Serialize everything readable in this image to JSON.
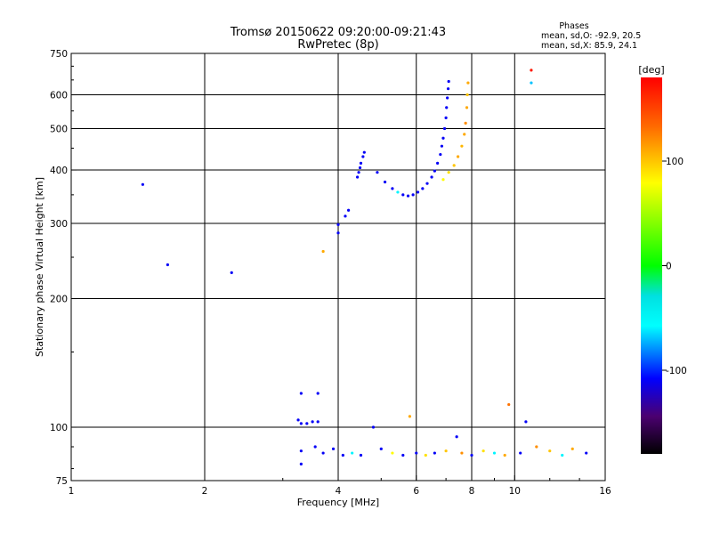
{
  "header": {
    "title_line1": "Tromsø 20150622 09:20:00-09:21:43",
    "title_line2": "RwPretec (8p)",
    "stats_title": "Phases",
    "stats_o": "mean, sd,O:  -92.9, 20.5",
    "stats_x": "mean, sd,X:   85.9, 24.1"
  },
  "colorbar": {
    "unit_label": "[deg]",
    "ticks": [
      "100",
      "0",
      "-100"
    ],
    "tick_values": [
      100,
      0,
      -100
    ],
    "range": [
      -180,
      180
    ]
  },
  "chart_data": {
    "type": "scatter",
    "xlabel": "Frequency [MHz]",
    "ylabel": "Stationary phase Virtual Height [km]",
    "xscale": "log",
    "yscale": "log",
    "xlim": [
      1,
      16
    ],
    "ylim": [
      75,
      750
    ],
    "xticks": [
      1,
      2,
      4,
      6,
      8,
      10,
      16
    ],
    "xtick_labels": [
      "1",
      "2",
      "4",
      "6",
      "8",
      "10",
      "16"
    ],
    "yticks": [
      75,
      100,
      200,
      300,
      400,
      500,
      600,
      750
    ],
    "ytick_labels": [
      "75",
      "100",
      "200",
      "300",
      "400",
      "500",
      "600",
      "750"
    ],
    "grid": true,
    "points": [
      {
        "x": 1.45,
        "y": 370,
        "phase": -110
      },
      {
        "x": 1.65,
        "y": 240,
        "phase": -110
      },
      {
        "x": 2.3,
        "y": 230,
        "phase": -110
      },
      {
        "x": 3.3,
        "y": 120,
        "phase": -110
      },
      {
        "x": 3.6,
        "y": 120,
        "phase": -110
      },
      {
        "x": 3.7,
        "y": 258,
        "phase": 110
      },
      {
        "x": 4.0,
        "y": 285,
        "phase": -110
      },
      {
        "x": 4.0,
        "y": 298,
        "phase": -110
      },
      {
        "x": 4.15,
        "y": 312,
        "phase": -110
      },
      {
        "x": 4.22,
        "y": 322,
        "phase": -110
      },
      {
        "x": 4.42,
        "y": 385,
        "phase": -110
      },
      {
        "x": 4.45,
        "y": 395,
        "phase": -110
      },
      {
        "x": 4.48,
        "y": 405,
        "phase": -110
      },
      {
        "x": 4.5,
        "y": 415,
        "phase": -110
      },
      {
        "x": 4.55,
        "y": 430,
        "phase": -110
      },
      {
        "x": 4.58,
        "y": 440,
        "phase": -110
      },
      {
        "x": 4.9,
        "y": 395,
        "phase": -110
      },
      {
        "x": 5.1,
        "y": 375,
        "phase": -110
      },
      {
        "x": 5.3,
        "y": 362,
        "phase": -110
      },
      {
        "x": 5.45,
        "y": 355,
        "phase": -60
      },
      {
        "x": 5.6,
        "y": 350,
        "phase": -110
      },
      {
        "x": 5.75,
        "y": 348,
        "phase": -110
      },
      {
        "x": 5.9,
        "y": 350,
        "phase": -110
      },
      {
        "x": 6.05,
        "y": 355,
        "phase": -110
      },
      {
        "x": 6.2,
        "y": 362,
        "phase": -110
      },
      {
        "x": 6.35,
        "y": 372,
        "phase": -110
      },
      {
        "x": 6.5,
        "y": 385,
        "phase": -110
      },
      {
        "x": 6.6,
        "y": 398,
        "phase": -110
      },
      {
        "x": 6.7,
        "y": 415,
        "phase": -110
      },
      {
        "x": 6.8,
        "y": 435,
        "phase": -110
      },
      {
        "x": 6.85,
        "y": 455,
        "phase": -110
      },
      {
        "x": 6.9,
        "y": 475,
        "phase": -110
      },
      {
        "x": 6.95,
        "y": 500,
        "phase": -110
      },
      {
        "x": 7.0,
        "y": 530,
        "phase": -110
      },
      {
        "x": 7.02,
        "y": 560,
        "phase": -110
      },
      {
        "x": 7.05,
        "y": 590,
        "phase": -110
      },
      {
        "x": 7.08,
        "y": 620,
        "phase": -110
      },
      {
        "x": 7.1,
        "y": 645,
        "phase": -110
      },
      {
        "x": 6.9,
        "y": 380,
        "phase": 80
      },
      {
        "x": 7.1,
        "y": 395,
        "phase": 90
      },
      {
        "x": 7.3,
        "y": 410,
        "phase": 100
      },
      {
        "x": 7.45,
        "y": 430,
        "phase": 110
      },
      {
        "x": 7.6,
        "y": 455,
        "phase": 105
      },
      {
        "x": 7.7,
        "y": 485,
        "phase": 110
      },
      {
        "x": 7.75,
        "y": 515,
        "phase": 120
      },
      {
        "x": 7.8,
        "y": 560,
        "phase": 110
      },
      {
        "x": 7.82,
        "y": 600,
        "phase": 100
      },
      {
        "x": 7.85,
        "y": 640,
        "phase": 110
      },
      {
        "x": 10.9,
        "y": 685,
        "phase": 170
      },
      {
        "x": 10.9,
        "y": 640,
        "phase": -70
      },
      {
        "x": 3.25,
        "y": 104,
        "phase": -110
      },
      {
        "x": 3.3,
        "y": 102,
        "phase": -110
      },
      {
        "x": 3.4,
        "y": 102,
        "phase": -110
      },
      {
        "x": 3.5,
        "y": 103,
        "phase": -110
      },
      {
        "x": 3.6,
        "y": 103,
        "phase": -110
      },
      {
        "x": 3.3,
        "y": 88,
        "phase": -110
      },
      {
        "x": 3.3,
        "y": 82,
        "phase": -110
      },
      {
        "x": 3.55,
        "y": 90,
        "phase": -110
      },
      {
        "x": 3.7,
        "y": 87,
        "phase": -110
      },
      {
        "x": 3.9,
        "y": 89,
        "phase": -110
      },
      {
        "x": 4.1,
        "y": 86,
        "phase": -110
      },
      {
        "x": 4.3,
        "y": 87,
        "phase": -60
      },
      {
        "x": 4.5,
        "y": 86,
        "phase": -110
      },
      {
        "x": 4.8,
        "y": 100,
        "phase": -110
      },
      {
        "x": 5.0,
        "y": 89,
        "phase": -110
      },
      {
        "x": 5.3,
        "y": 87,
        "phase": 80
      },
      {
        "x": 5.6,
        "y": 86,
        "phase": -110
      },
      {
        "x": 5.8,
        "y": 106,
        "phase": 110
      },
      {
        "x": 6.0,
        "y": 87,
        "phase": -110
      },
      {
        "x": 6.3,
        "y": 86,
        "phase": 90
      },
      {
        "x": 6.6,
        "y": 87,
        "phase": -110
      },
      {
        "x": 7.0,
        "y": 88,
        "phase": 100
      },
      {
        "x": 7.4,
        "y": 95,
        "phase": -110
      },
      {
        "x": 7.6,
        "y": 87,
        "phase": 120
      },
      {
        "x": 8.0,
        "y": 86,
        "phase": -110
      },
      {
        "x": 8.5,
        "y": 88,
        "phase": 90
      },
      {
        "x": 9.0,
        "y": 87,
        "phase": -60
      },
      {
        "x": 9.5,
        "y": 86,
        "phase": 110
      },
      {
        "x": 9.7,
        "y": 113,
        "phase": 130
      },
      {
        "x": 10.3,
        "y": 87,
        "phase": -110
      },
      {
        "x": 10.6,
        "y": 103,
        "phase": -110
      },
      {
        "x": 11.2,
        "y": 90,
        "phase": 120
      },
      {
        "x": 12.0,
        "y": 88,
        "phase": 100
      },
      {
        "x": 12.8,
        "y": 86,
        "phase": -60
      },
      {
        "x": 13.5,
        "y": 89,
        "phase": 110
      },
      {
        "x": 14.5,
        "y": 87,
        "phase": -110
      }
    ]
  }
}
